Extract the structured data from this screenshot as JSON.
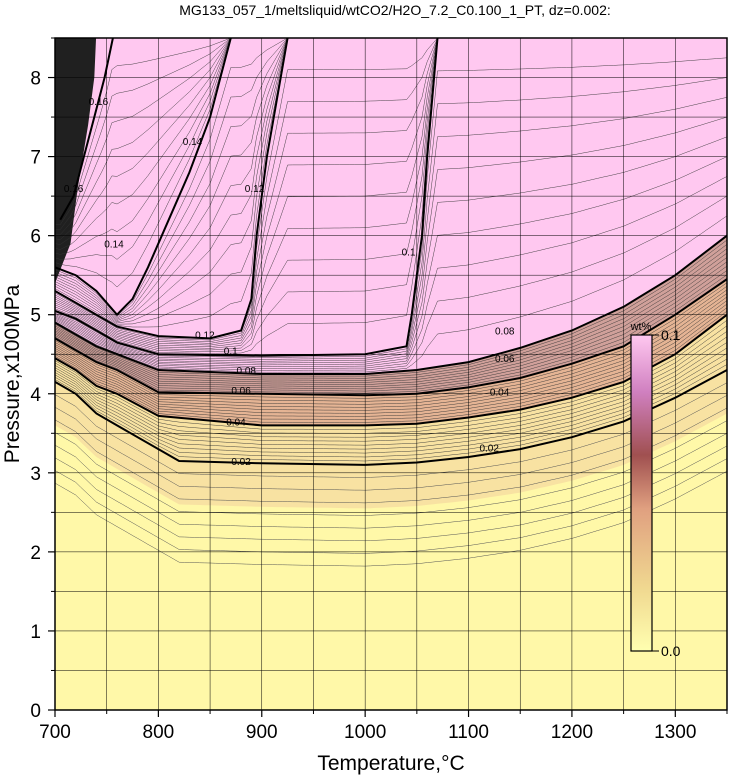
{
  "chart_data": {
    "type": "heatmap",
    "title": "MG133_057_1/meltsliquid/wtCO2/H2O_7.2_C0.100_1_PT, dz=0.002:",
    "xlabel": "Temperature,°C",
    "ylabel": "Pressure,x100MPa",
    "xlim": [
      700,
      1350
    ],
    "ylim": [
      0,
      8.5
    ],
    "x_ticks": [
      "700",
      "800",
      "900",
      "1000",
      "1100",
      "1200",
      "1300"
    ],
    "y_ticks": [
      "0",
      "1",
      "2",
      "3",
      "4",
      "5",
      "6",
      "7",
      "8"
    ],
    "grid": true,
    "colorbar": {
      "unit": "wt%",
      "min_label": "0.0",
      "max_label": "0.1",
      "min": 0.0,
      "max": 0.1,
      "colors": [
        "#ffffb0",
        "#f0d890",
        "#e0a080",
        "#a05050",
        "#d080c0",
        "#ffc8f0"
      ],
      "placement": "right-inside"
    },
    "contour_interval": 0.002,
    "labeled_contours": [
      {
        "level": "0.02",
        "points": [
          [
            700,
            4.15
          ],
          [
            720,
            4.0
          ],
          [
            740,
            3.75
          ],
          [
            760,
            3.6
          ],
          [
            800,
            3.3
          ],
          [
            820,
            3.15
          ],
          [
            900,
            3.12
          ],
          [
            1000,
            3.1
          ],
          [
            1050,
            3.13
          ],
          [
            1100,
            3.2
          ],
          [
            1150,
            3.3
          ],
          [
            1200,
            3.45
          ],
          [
            1250,
            3.65
          ],
          [
            1300,
            3.95
          ],
          [
            1350,
            4.3
          ]
        ],
        "label_at": [
          [
            880,
            3.15
          ],
          [
            1120,
            3.32
          ]
        ]
      },
      {
        "level": "0.04",
        "points": [
          [
            700,
            4.45
          ],
          [
            720,
            4.3
          ],
          [
            740,
            4.1
          ],
          [
            760,
            4.0
          ],
          [
            800,
            3.72
          ],
          [
            900,
            3.6
          ],
          [
            1000,
            3.6
          ],
          [
            1050,
            3.62
          ],
          [
            1100,
            3.7
          ],
          [
            1150,
            3.8
          ],
          [
            1200,
            3.95
          ],
          [
            1250,
            4.15
          ],
          [
            1300,
            4.5
          ],
          [
            1350,
            5.0
          ]
        ],
        "label_at": [
          [
            875,
            3.65
          ],
          [
            1130,
            4.03
          ]
        ]
      },
      {
        "level": "0.06",
        "points": [
          [
            700,
            4.7
          ],
          [
            720,
            4.55
          ],
          [
            740,
            4.4
          ],
          [
            760,
            4.3
          ],
          [
            800,
            4.02
          ],
          [
            900,
            4.0
          ],
          [
            1000,
            3.98
          ],
          [
            1050,
            4.0
          ],
          [
            1100,
            4.08
          ],
          [
            1150,
            4.2
          ],
          [
            1200,
            4.38
          ],
          [
            1250,
            4.6
          ],
          [
            1300,
            5.0
          ],
          [
            1350,
            5.45
          ]
        ],
        "label_at": [
          [
            880,
            4.05
          ],
          [
            1135,
            4.45
          ]
        ]
      },
      {
        "level": "0.08",
        "points": [
          [
            700,
            4.9
          ],
          [
            720,
            4.75
          ],
          [
            740,
            4.6
          ],
          [
            760,
            4.5
          ],
          [
            800,
            4.3
          ],
          [
            900,
            4.25
          ],
          [
            1000,
            4.25
          ],
          [
            1050,
            4.3
          ],
          [
            1100,
            4.4
          ],
          [
            1150,
            4.58
          ],
          [
            1200,
            4.8
          ],
          [
            1250,
            5.1
          ],
          [
            1300,
            5.5
          ],
          [
            1350,
            6.0
          ]
        ],
        "label_at": [
          [
            885,
            4.3
          ],
          [
            1135,
            4.8
          ]
        ]
      },
      {
        "level": "0.1",
        "points": [
          [
            700,
            5.05
          ],
          [
            720,
            4.95
          ],
          [
            740,
            4.8
          ],
          [
            760,
            4.65
          ],
          [
            800,
            4.5
          ],
          [
            900,
            4.48
          ],
          [
            1000,
            4.5
          ],
          [
            1040,
            4.6
          ],
          [
            1045,
            5.0
          ],
          [
            1050,
            5.5
          ],
          [
            1055,
            6.0
          ],
          [
            1060,
            7.0
          ],
          [
            1070,
            8.5
          ]
        ],
        "label_at": [
          [
            870,
            4.55
          ],
          [
            1042,
            5.8
          ]
        ]
      },
      {
        "level": "0.12",
        "points": [
          [
            700,
            5.3
          ],
          [
            720,
            5.15
          ],
          [
            740,
            5.0
          ],
          [
            760,
            4.85
          ],
          [
            800,
            4.73
          ],
          [
            850,
            4.7
          ],
          [
            880,
            4.8
          ],
          [
            890,
            5.2
          ],
          [
            895,
            6.0
          ],
          [
            905,
            7.0
          ],
          [
            925,
            8.5
          ]
        ],
        "label_at": [
          [
            845,
            4.75
          ],
          [
            893,
            6.6
          ]
        ]
      },
      {
        "level": "0.14",
        "points": [
          [
            700,
            5.6
          ],
          [
            720,
            5.5
          ],
          [
            740,
            5.3
          ],
          [
            760,
            5.0
          ],
          [
            775,
            5.2
          ],
          [
            790,
            5.6
          ],
          [
            810,
            6.2
          ],
          [
            830,
            6.8
          ],
          [
            850,
            7.5
          ],
          [
            860,
            8.0
          ],
          [
            870,
            8.5
          ]
        ],
        "label_at": [
          [
            757,
            5.9
          ],
          [
            833,
            7.2
          ]
        ]
      },
      {
        "level": "0.16",
        "points": [
          [
            705,
            6.2
          ],
          [
            718,
            6.5
          ],
          [
            728,
            7.0
          ],
          [
            738,
            7.5
          ],
          [
            748,
            8.0
          ],
          [
            756,
            8.5
          ]
        ],
        "label_at": [
          [
            718,
            6.6
          ],
          [
            742,
            7.7
          ]
        ]
      }
    ]
  }
}
